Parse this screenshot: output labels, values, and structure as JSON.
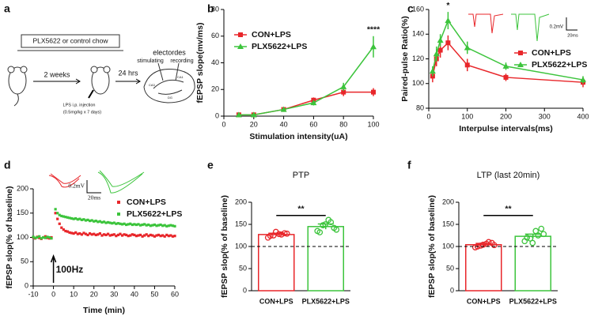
{
  "schematic": {
    "panel_label": "a",
    "chow": "PLX5622 or control chow",
    "weeks": "2 weeks",
    "hours": "24 hrs",
    "electrodes": "electordes",
    "stimulating": "stimulating",
    "recording": "recording",
    "ca1": "CA1",
    "ca3": "CA3",
    "dg": "DG",
    "injection": "LPS i.p. injection",
    "dose": "(0.5mg/kg x 7 days)"
  },
  "chart_data": [
    {
      "type": "line",
      "panel_label": "b",
      "x_label": "Stimulation intensity(uA)",
      "y_label": "fEPSP slope(mv/ms)",
      "annotation": "****",
      "x": [
        10,
        20,
        40,
        60,
        80,
        100
      ],
      "xlim": [
        0,
        100
      ],
      "xticks": [
        0,
        20,
        40,
        60,
        80,
        100
      ],
      "ylim": [
        0,
        80
      ],
      "yticks": [
        0,
        20,
        40,
        60,
        80
      ],
      "series": [
        {
          "name": "CON+LPS",
          "color": "#e8262a",
          "marker": "square",
          "values": [
            1,
            1,
            5,
            12,
            18,
            18
          ],
          "errors": [
            1,
            1,
            1,
            2,
            3,
            3
          ]
        },
        {
          "name": "PLX5622+LPS",
          "color": "#3cc43c",
          "marker": "triangle",
          "values": [
            1,
            1,
            5,
            10,
            22,
            52
          ],
          "errors": [
            1,
            1,
            1,
            2,
            3,
            8
          ]
        }
      ]
    },
    {
      "type": "line",
      "panel_label": "c",
      "x_label": "Interpulse intervals(ms)",
      "y_label": "Paired-pulse Ratio(%)",
      "annotation": "*",
      "scale_v": "0.2mV",
      "scale_t": "20ms",
      "x": [
        10,
        20,
        30,
        50,
        100,
        200,
        400
      ],
      "xlim": [
        0,
        400
      ],
      "xticks": [
        0,
        100,
        200,
        300,
        400
      ],
      "ylim": [
        80,
        160
      ],
      "yticks": [
        80,
        100,
        120,
        140,
        160
      ],
      "series": [
        {
          "name": "CON+LPS",
          "color": "#e8262a",
          "marker": "square",
          "values": [
            106,
            120,
            127,
            133,
            115,
            105,
            101
          ],
          "errors": [
            5,
            6,
            6,
            6,
            5,
            3,
            4
          ]
        },
        {
          "name": "PLX5622+LPS",
          "color": "#3cc43c",
          "marker": "triangle",
          "values": [
            110,
            124,
            135,
            151,
            129,
            114,
            103
          ],
          "errors": [
            4,
            6,
            5,
            7,
            5,
            3,
            3
          ]
        }
      ]
    },
    {
      "type": "scatter",
      "panel_label": "d",
      "x_label": "Time (min)",
      "y_label": "fEPSP slop(% of baseline)",
      "annotation": "100Hz",
      "scale_v": "0.2mV",
      "scale_t": "20ms",
      "x": [
        -10,
        -9,
        -8,
        -7,
        -6,
        -5,
        -4,
        -3,
        -2,
        -1,
        1,
        2,
        3,
        4,
        5,
        6,
        7,
        8,
        9,
        10,
        11,
        12,
        13,
        14,
        15,
        16,
        17,
        18,
        19,
        20,
        21,
        22,
        23,
        24,
        25,
        26,
        27,
        28,
        29,
        30,
        31,
        32,
        33,
        34,
        35,
        36,
        37,
        38,
        39,
        40,
        41,
        42,
        43,
        44,
        45,
        46,
        47,
        48,
        49,
        50,
        51,
        52,
        53,
        54,
        55,
        56,
        57,
        58,
        59,
        60
      ],
      "xlim": [
        -10,
        60
      ],
      "xticks": [
        -10,
        0,
        10,
        20,
        30,
        40,
        50,
        60
      ],
      "ylim": [
        0,
        200
      ],
      "yticks": [
        0,
        50,
        100,
        150,
        200
      ],
      "series": [
        {
          "name": "CON+LPS",
          "color": "#e8262a",
          "values": [
            100,
            98,
            101,
            99,
            97,
            100,
            102,
            99,
            98,
            100,
            150,
            138,
            128,
            120,
            116,
            113,
            112,
            110,
            109,
            108,
            110,
            107,
            108,
            106,
            109,
            107,
            105,
            108,
            106,
            107,
            105,
            106,
            108,
            104,
            106,
            105,
            107,
            104,
            105,
            106,
            103,
            105,
            107,
            104,
            106,
            105,
            103,
            104,
            106,
            105,
            103,
            104,
            105,
            102,
            104,
            106,
            103,
            105,
            104,
            102,
            104,
            105,
            103,
            104,
            102,
            105,
            103,
            104,
            102,
            103
          ]
        },
        {
          "name": "PLX5622+LPS",
          "color": "#3cc43c",
          "values": [
            101,
            99,
            100,
            102,
            98,
            100,
            99,
            101,
            100,
            98,
            158,
            150,
            146,
            144,
            143,
            142,
            141,
            140,
            139,
            138,
            139,
            137,
            138,
            136,
            137,
            135,
            136,
            134,
            135,
            133,
            134,
            132,
            133,
            131,
            132,
            130,
            131,
            130,
            129,
            130,
            128,
            129,
            128,
            127,
            128,
            126,
            127,
            128,
            126,
            127,
            126,
            127,
            125,
            126,
            127,
            125,
            126,
            124,
            125,
            126,
            124,
            125,
            126,
            124,
            125,
            123,
            124,
            125,
            124,
            123
          ]
        }
      ]
    },
    {
      "type": "bar",
      "panel_label": "e",
      "title": "PTP",
      "y_label": "fEPSP slop(% of baseline)",
      "significance": "**",
      "reference_line": 100,
      "categories": [
        "CON+LPS",
        "PLX5622+LPS"
      ],
      "colors": [
        "#e8262a",
        "#3cc43c"
      ],
      "values": [
        127,
        145
      ],
      "errors": [
        3,
        6
      ],
      "points": [
        [
          120,
          125,
          128,
          130,
          124,
          133,
          127,
          129
        ],
        [
          135,
          148,
          160,
          142,
          132,
          150,
          155,
          138
        ]
      ],
      "ylim": [
        0,
        200
      ],
      "yticks": [
        0,
        50,
        100,
        150,
        200
      ]
    },
    {
      "type": "bar",
      "panel_label": "f",
      "title": "LTP (last 20min)",
      "y_label": "fEPSP slop(% of baseline)",
      "significance": "**",
      "reference_line": 100,
      "categories": [
        "CON+LPS",
        "PLX5622+LPS"
      ],
      "colors": [
        "#e8262a",
        "#3cc43c"
      ],
      "values": [
        104,
        123
      ],
      "errors": [
        3,
        5
      ],
      "points": [
        [
          98,
          102,
          106,
          108,
          100,
          104,
          110,
          103
        ],
        [
          112,
          118,
          135,
          140,
          120,
          108,
          125,
          128
        ]
      ],
      "ylim": [
        0,
        200
      ],
      "yticks": [
        0,
        50,
        100,
        150,
        200
      ]
    }
  ]
}
